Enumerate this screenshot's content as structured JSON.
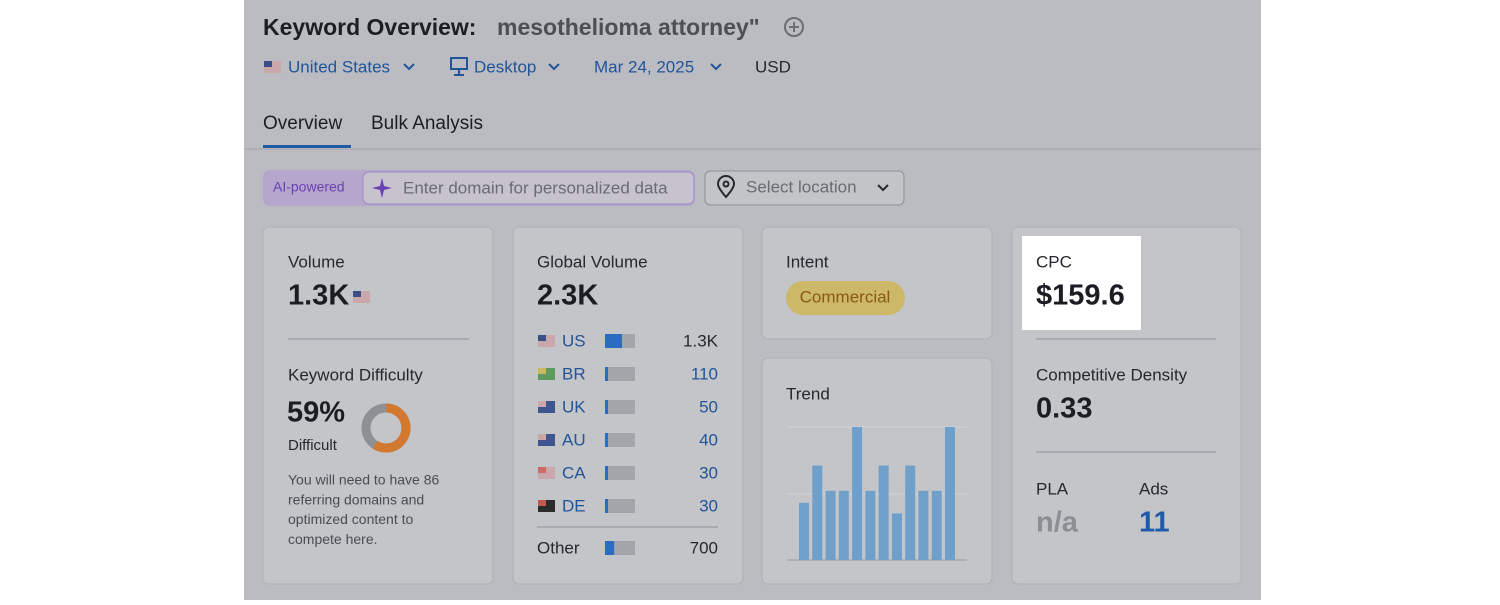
{
  "header": {
    "title": "Keyword Overview:",
    "keyword": "mesothelioma attorney\"",
    "filters": {
      "country": "United States",
      "device": "Desktop",
      "date": "Mar 24, 2025",
      "currency": "USD"
    }
  },
  "tabs": [
    "Overview",
    "Bulk Analysis"
  ],
  "search": {
    "badge": "AI-powered",
    "placeholder": "Enter domain for personalized data",
    "location": "Select location"
  },
  "volume": {
    "label": "Volume",
    "value": "1.3K"
  },
  "keyword_difficulty": {
    "label": "Keyword Difficulty",
    "score": {
      "value": 59,
      "label": "59%"
    },
    "level": "Difficult",
    "note": [
      "You will need to have 86",
      "referring domains and",
      "optimized content to",
      "compete here."
    ]
  },
  "global_volume": {
    "label": "Global Volume",
    "total": {
      "value": 2300,
      "label": "2.3K"
    },
    "countries": [
      {
        "code": "US",
        "volume": {
          "value": 1300,
          "label": "1.3K"
        }
      },
      {
        "code": "BR",
        "volume": 110
      },
      {
        "code": "UK",
        "volume": 50
      },
      {
        "code": "AU",
        "volume": 40
      },
      {
        "code": "CA",
        "volume": 30
      },
      {
        "code": "DE",
        "volume": 30
      }
    ],
    "other": {
      "name": "Other",
      "volume": 700
    }
  },
  "intent": {
    "label": "Intent",
    "value": "Commercial"
  },
  "trend": {
    "label": "Trend",
    "values": [
      43,
      71,
      52,
      52,
      100,
      52,
      71,
      35,
      71,
      52,
      52,
      100
    ]
  },
  "cpc": {
    "label": "CPC",
    "value": "$159.6"
  },
  "competitive_density": {
    "label": "Competitive Density",
    "value": "0.33"
  },
  "pla": {
    "label": "PLA",
    "value": "n/a"
  },
  "ads": {
    "label": "Ads",
    "value": "11"
  }
}
